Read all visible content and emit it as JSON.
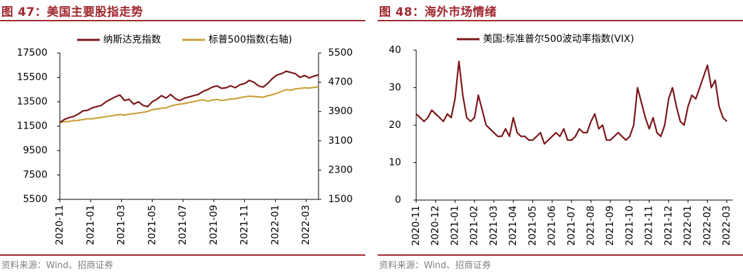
{
  "left_panel": {
    "title": "图 47：美国主要股指走势",
    "source": "资料来源：Wind、招商证券"
  },
  "right_panel": {
    "title": "图 48：海外市场情绪",
    "source": "资料来源：Wind、招商证券"
  },
  "colors": {
    "accent": "#a0272d",
    "nasdaq": "#7b1518",
    "sp500": "#c9a13b",
    "vix": "#7b1518",
    "source_text": "#808080"
  },
  "chart_data": [
    {
      "type": "line",
      "title": "美国主要股指走势",
      "x_range": [
        "2020-11",
        "2022-03"
      ],
      "xticks": [
        "2020-11",
        "2021-01",
        "2021-03",
        "2021-05",
        "2021-07",
        "2021-09",
        "2021-11",
        "2022-01",
        "2022-03"
      ],
      "y_left": {
        "label": "纳斯达克指数",
        "ylim": [
          5500,
          17500
        ],
        "ticks": [
          5500,
          7500,
          9500,
          11500,
          13500,
          15500,
          17500
        ]
      },
      "y_right": {
        "label": "标普500指数(右轴)",
        "ylim": [
          1500,
          5500
        ],
        "ticks": [
          1500,
          2300,
          3100,
          3900,
          4700,
          5500
        ]
      },
      "legend_position": "top",
      "series": [
        {
          "name": "纳斯达克指数",
          "axis": "left",
          "x": [
            0.0,
            0.3,
            0.6,
            0.9,
            1.2,
            1.5,
            1.8,
            2.1,
            2.4,
            2.7,
            3.0,
            3.3,
            3.6,
            3.9,
            4.2,
            4.5,
            4.8,
            5.1,
            5.4,
            5.7,
            6.0,
            6.3,
            6.6,
            6.9,
            7.2,
            7.5,
            7.8,
            8.1,
            8.4,
            8.7,
            9.0,
            9.3,
            9.6,
            9.9,
            10.2,
            10.5,
            10.8,
            11.1,
            11.4,
            11.7,
            12.0,
            12.3,
            12.6,
            12.9,
            13.2,
            13.5,
            13.8,
            14.1,
            14.4,
            14.7,
            15.0,
            15.3,
            15.6,
            15.9,
            16.2,
            16.5,
            16.8
          ],
          "values": [
            11800,
            12050,
            12200,
            12300,
            12500,
            12750,
            12800,
            13000,
            13100,
            13200,
            13500,
            13700,
            13900,
            14050,
            13600,
            13700,
            13300,
            13500,
            13200,
            13100,
            13500,
            13700,
            14000,
            13800,
            14100,
            13750,
            13600,
            13800,
            13900,
            14000,
            14100,
            14350,
            14500,
            14700,
            14800,
            14600,
            14650,
            14800,
            14650,
            14900,
            15000,
            15250,
            15100,
            14800,
            14700,
            15000,
            15400,
            15700,
            15800,
            16000,
            15900,
            15800,
            15500,
            15650,
            15450,
            15600,
            15700
          ]
        },
        {
          "name": "标普500指数(右轴)",
          "axis": "right",
          "x": [
            0.0,
            0.3,
            0.6,
            0.9,
            1.2,
            1.5,
            1.8,
            2.1,
            2.4,
            2.7,
            3.0,
            3.3,
            3.6,
            3.9,
            4.2,
            4.5,
            4.8,
            5.1,
            5.4,
            5.7,
            6.0,
            6.3,
            6.6,
            6.9,
            7.2,
            7.5,
            7.8,
            8.1,
            8.4,
            8.7,
            9.0,
            9.3,
            9.6,
            9.9,
            10.2,
            10.5,
            10.8,
            11.1,
            11.4,
            11.7,
            12.0,
            12.3,
            12.6,
            12.9,
            13.2,
            13.5,
            13.8,
            14.1,
            14.4,
            14.7,
            15.0,
            15.3,
            15.6,
            15.9,
            16.2,
            16.5,
            16.8
          ],
          "values": [
            3600,
            3620,
            3630,
            3650,
            3660,
            3680,
            3700,
            3700,
            3720,
            3740,
            3760,
            3780,
            3800,
            3820,
            3800,
            3830,
            3840,
            3860,
            3880,
            3900,
            3950,
            3970,
            3990,
            4000,
            4050,
            4080,
            4100,
            4120,
            4150,
            4170,
            4200,
            4220,
            4180,
            4210,
            4230,
            4200,
            4220,
            4240,
            4250,
            4280,
            4300,
            4320,
            4310,
            4300,
            4290,
            4330,
            4360,
            4400,
            4450,
            4500,
            4480,
            4520,
            4530,
            4550,
            4540,
            4560,
            4570
          ]
        }
      ]
    },
    {
      "type": "line",
      "title": "海外市场情绪",
      "x_range": [
        "2020-11",
        "2022-03"
      ],
      "xticks": [
        "2020-11",
        "2020-12",
        "2021-01",
        "2021-02",
        "2021-03",
        "2021-04",
        "2021-05",
        "2021-06",
        "2021-07",
        "2021-08",
        "2021-09",
        "2021-10",
        "2021-11",
        "2021-12",
        "2022-01",
        "2022-02",
        "2022-03"
      ],
      "y": {
        "ylim": [
          0,
          40
        ],
        "ticks": [
          0,
          10,
          20,
          30,
          40
        ]
      },
      "legend_position": "top",
      "series": [
        {
          "name": "美国:标准普尔500波动率指数(VIX)",
          "x": [
            0.0,
            0.2,
            0.4,
            0.6,
            0.8,
            1.0,
            1.2,
            1.4,
            1.6,
            1.8,
            2.0,
            2.2,
            2.4,
            2.6,
            2.8,
            3.0,
            3.2,
            3.4,
            3.6,
            3.8,
            4.0,
            4.2,
            4.4,
            4.6,
            4.8,
            5.0,
            5.2,
            5.4,
            5.6,
            5.8,
            6.0,
            6.2,
            6.4,
            6.6,
            6.8,
            7.0,
            7.2,
            7.4,
            7.6,
            7.8,
            8.0,
            8.2,
            8.4,
            8.6,
            8.8,
            9.0,
            9.2,
            9.4,
            9.6,
            9.8,
            10.0,
            10.2,
            10.4,
            10.6,
            10.8,
            11.0,
            11.2,
            11.4,
            11.6,
            11.8,
            12.0,
            12.2,
            12.4,
            12.6,
            12.8,
            13.0,
            13.2,
            13.4,
            13.6,
            13.8,
            14.0,
            14.2,
            14.4,
            14.6,
            14.8,
            15.0,
            15.2,
            15.4,
            15.6,
            15.8,
            16.0
          ],
          "values": [
            23,
            22,
            21,
            22,
            24,
            23,
            22,
            21,
            23,
            22,
            27,
            37,
            28,
            22,
            21,
            22,
            28,
            24,
            20,
            19,
            18,
            17,
            17,
            19,
            17,
            22,
            18,
            17,
            17,
            16,
            16,
            17,
            18,
            15,
            16,
            17,
            18,
            17,
            19,
            16,
            16,
            17,
            19,
            18,
            18,
            21,
            23,
            19,
            20,
            16,
            16,
            17,
            18,
            17,
            16,
            17,
            20,
            30,
            26,
            22,
            19,
            22,
            18,
            17,
            20,
            27,
            30,
            25,
            21,
            20,
            25,
            28,
            27,
            30,
            33,
            36,
            30,
            32,
            25,
            22,
            21
          ]
        }
      ]
    }
  ]
}
